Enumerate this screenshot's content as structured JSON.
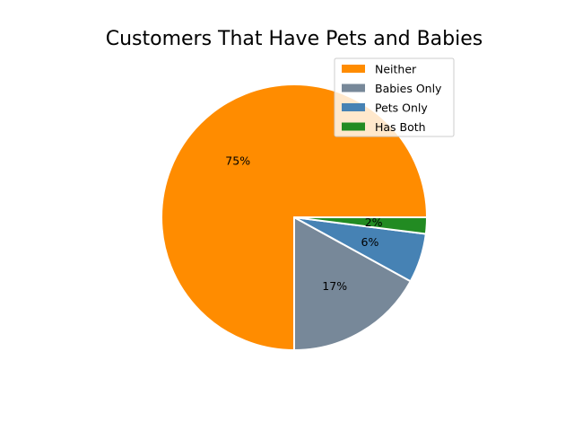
{
  "chart_data": {
    "type": "pie",
    "title": "Customers That Have Pets and Babies",
    "categories": [
      "Neither",
      "Babies Only",
      "Pets Only",
      "Has Both"
    ],
    "values": [
      75,
      17,
      6,
      2
    ],
    "labels": [
      "75%",
      "17%",
      "6%",
      "2%"
    ],
    "colors": [
      "#ff8c00",
      "#778899",
      "#4682b4",
      "#228b22"
    ],
    "legend_position": "upper-right",
    "start_angle_deg": 0,
    "direction": "counterclockwise"
  }
}
